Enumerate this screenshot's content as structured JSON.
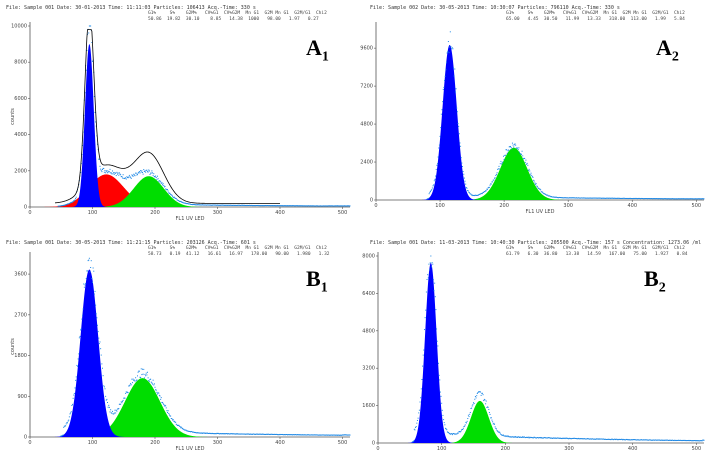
{
  "colors": {
    "g1": "#0000ff",
    "s": "#ff0000",
    "g2": "#00dd00",
    "dots": "#1e88e5",
    "fit": "#000000",
    "axis": "#555555"
  },
  "chart_data": [
    {
      "panel": "A",
      "subscript": "1",
      "type": "area",
      "header": "File: Sample 001  Date: 30-01-2013  Time: 11:11:03  Particles: 106413  Acq.-Time: 330 s",
      "stats_head": "G1%     S%    G2M%   CV%G1  CV%G2M  Mn G1  G2M Mn G1  G2M/G1  Chi2",
      "stats_vals": "50.86  19.82  30.10    8.85   14.38  1000   98.00   1.97   0.27",
      "xlabel": "FL1 UV LED",
      "ylabel": "counts",
      "xticks": [
        0,
        100,
        200,
        300,
        400,
        500
      ],
      "yticks": [
        0,
        2000,
        4000,
        6000,
        8000,
        10000
      ],
      "xlim": [
        0,
        512
      ],
      "ylim": [
        0,
        10000
      ],
      "fit": true,
      "g1": {
        "mean": 95,
        "sd": 7,
        "peak": 9000
      },
      "s": {
        "mean": 122,
        "sd": 28,
        "peak": 1800
      },
      "g2": {
        "mean": 190,
        "sd": 24,
        "peak": 1700
      },
      "background": {
        "level": 200,
        "tail_end": 470
      }
    },
    {
      "panel": "A",
      "subscript": "2",
      "type": "area",
      "header": "File: Sample 002  Date: 30-05-2013  Time: 10:30:07  Particles: 796110  Acq.-Time: 330 s",
      "stats_head": "G1%     S%    G2M%   CV%G1  CV%G2M  Mn G1  G2M Mn G1  G2M/G1  Chi2",
      "stats_vals": "65.00   4.45  30.50   11.99   13.33   318.00  113.00   1.99   5.84",
      "xlabel": "FL1 UV LED",
      "ylabel": "",
      "xticks": [
        0,
        100,
        200,
        300,
        400,
        500
      ],
      "yticks": [
        0,
        2400,
        4800,
        7200,
        9600
      ],
      "xlim": [
        0,
        512
      ],
      "ylim": [
        0,
        11000
      ],
      "fit": false,
      "g1": {
        "mean": 115,
        "sd": 11,
        "peak": 9800
      },
      "g2": {
        "mean": 215,
        "sd": 21,
        "peak": 3300
      },
      "background": {
        "level": 250,
        "tail_end": 490
      }
    },
    {
      "panel": "B",
      "subscript": "1",
      "type": "area",
      "header": "File: Sample 001  Date: 30-05-2013  Time: 11:21:15  Particles: 203126  Acq.-Time: 601 s",
      "stats_head": "G1%     S%    G2M%   CV%G1  CV%G2M  Mn G1  G2M Mn G1  G2M/G1  Chi2",
      "stats_vals": "58.73   0.19  41.12   16.61   16.97   178.00   90.00   1.980   1.32",
      "xlabel": "FL1 UV LED",
      "ylabel": "counts",
      "xticks": [
        0,
        100,
        200,
        300,
        400,
        500
      ],
      "yticks": [
        0,
        900,
        1800,
        2700,
        3600
      ],
      "xlim": [
        0,
        512
      ],
      "ylim": [
        0,
        4000
      ],
      "fit": false,
      "g1": {
        "mean": 95,
        "sd": 14,
        "peak": 3700
      },
      "g2": {
        "mean": 180,
        "sd": 28,
        "peak": 1300
      },
      "background": {
        "level": 150,
        "tail_end": 500
      }
    },
    {
      "panel": "B",
      "subscript": "2",
      "type": "area",
      "header": "File: Sample 001  Date: 11-03-2013  Time: 10:40:30  Particles: 205500  Acq.-Time: 157 s  Concentration: 1273.06 /ml",
      "stats_head": "G1%     S%    G2M%   CV%G1  CV%G2M  Mn G1  G2M Mn G1  G2M/G1  Chi2",
      "stats_vals": "61.79   6.30  36.80   13.38   14.59   167.00   75.00   1.927   0.84",
      "xlabel": "",
      "ylabel": "",
      "xticks": [
        0,
        100,
        200,
        300,
        400,
        500
      ],
      "yticks": [
        0,
        1600,
        3200,
        4800,
        6400,
        8000
      ],
      "xlim": [
        0,
        512
      ],
      "ylim": [
        0,
        8000
      ],
      "fit": false,
      "g1": {
        "mean": 83,
        "sd": 9,
        "peak": 7700
      },
      "g2": {
        "mean": 160,
        "sd": 14,
        "peak": 1800
      },
      "background": {
        "level": 400,
        "tail_end": 510
      }
    }
  ]
}
